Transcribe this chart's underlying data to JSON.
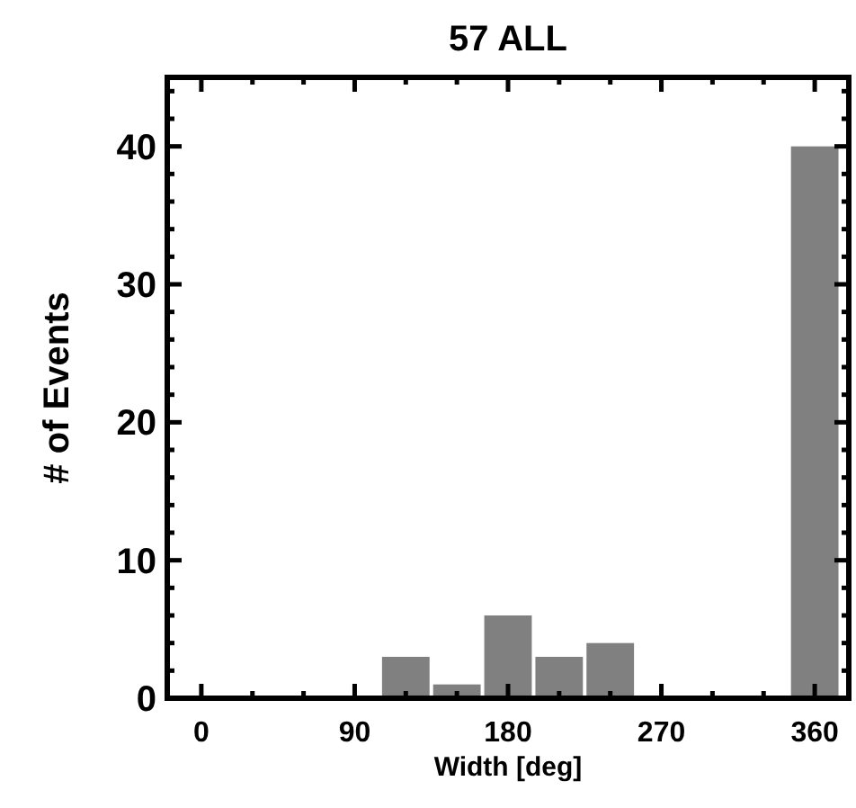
{
  "chart_data": {
    "type": "histogram",
    "title": "57 ALL",
    "xlabel": "Width [deg]",
    "ylabel": "# of Events",
    "color": "#808080",
    "bins": [
      105,
      135,
      165,
      195,
      225,
      255,
      285,
      315,
      345,
      375
    ],
    "values": [
      3,
      1,
      6,
      3,
      4,
      0,
      0,
      0,
      40
    ],
    "xlim": [
      -20,
      380
    ],
    "ylim": [
      0,
      45
    ],
    "xticks": [
      0,
      {
        "value": 30,
        "label": null
      },
      {
        "value": 60,
        "label": null
      },
      90,
      {
        "value": 120,
        "label": null
      },
      {
        "value": 150,
        "label": null
      },
      180,
      {
        "value": 210,
        "label": null
      },
      {
        "value": 240,
        "label": null
      },
      270,
      {
        "value": 300,
        "label": null
      },
      {
        "value": 330,
        "label": null
      },
      360
    ],
    "yticks": [
      0,
      {
        "value": 2,
        "label": null
      },
      {
        "value": 4,
        "label": null
      },
      {
        "value": 6,
        "label": null
      },
      {
        "value": 8,
        "label": null
      },
      10,
      {
        "value": 12,
        "label": null
      },
      {
        "value": 14,
        "label": null
      },
      {
        "value": 16,
        "label": null
      },
      {
        "value": 18,
        "label": null
      },
      20,
      {
        "value": 22,
        "label": null
      },
      {
        "value": 24,
        "label": null
      },
      {
        "value": 26,
        "label": null
      },
      {
        "value": 28,
        "label": null
      },
      30,
      {
        "value": 32,
        "label": null
      },
      {
        "value": 34,
        "label": null
      },
      {
        "value": 36,
        "label": null
      },
      {
        "value": 38,
        "label": null
      },
      40,
      {
        "value": 42,
        "label": null
      },
      {
        "value": 44,
        "label": null
      }
    ],
    "grid": false
  }
}
